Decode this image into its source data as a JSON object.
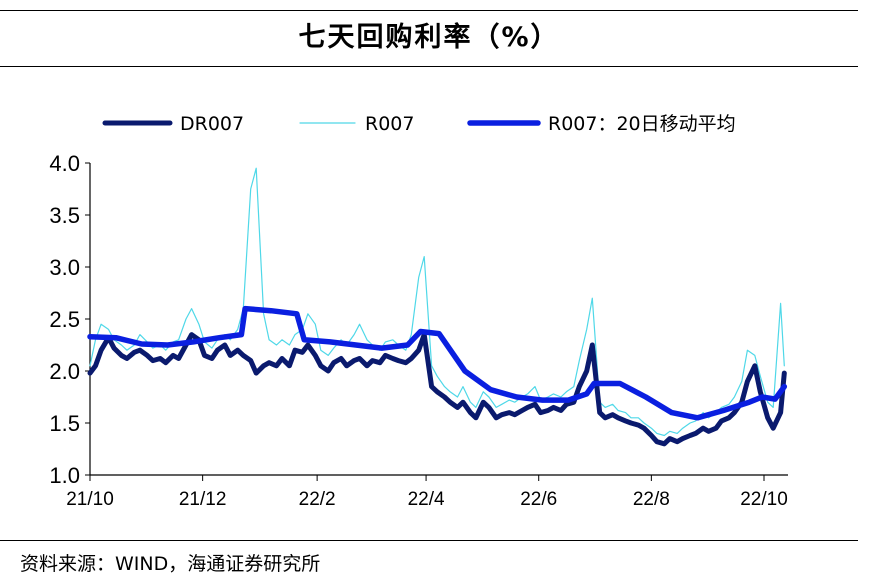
{
  "title": "七天回购利率（%）",
  "source": "资料来源：WIND，海通证券研究所",
  "colors": {
    "dr007": "#0a1a6e",
    "r007": "#4fd8e8",
    "ma20": "#0a1fe0"
  },
  "chart_data": {
    "type": "line",
    "x_ticks": [
      "21/10",
      "21/12",
      "22/2",
      "22/4",
      "22/6",
      "22/8",
      "22/10"
    ],
    "x_range": [
      "2021-10-01",
      "2022-10-14"
    ],
    "ylim": [
      1.0,
      4.0
    ],
    "y_ticks": [
      "4.0",
      "3.5",
      "3.0",
      "2.5",
      "2.0",
      "1.5",
      "1.0"
    ],
    "grid": false,
    "legend": "top",
    "series": [
      {
        "name": "DR007",
        "color": "#0a1a6e",
        "points": [
          [
            "2021-10-01",
            1.98
          ],
          [
            "2021-10-04",
            2.05
          ],
          [
            "2021-10-07",
            2.2
          ],
          [
            "2021-10-11",
            2.32
          ],
          [
            "2021-10-14",
            2.22
          ],
          [
            "2021-10-18",
            2.15
          ],
          [
            "2021-10-21",
            2.12
          ],
          [
            "2021-10-25",
            2.18
          ],
          [
            "2021-10-28",
            2.2
          ],
          [
            "2021-11-01",
            2.15
          ],
          [
            "2021-11-04",
            2.1
          ],
          [
            "2021-11-08",
            2.12
          ],
          [
            "2021-11-11",
            2.08
          ],
          [
            "2021-11-15",
            2.15
          ],
          [
            "2021-11-18",
            2.12
          ],
          [
            "2021-11-22",
            2.25
          ],
          [
            "2021-11-25",
            2.35
          ],
          [
            "2021-11-29",
            2.3
          ],
          [
            "2021-12-02",
            2.15
          ],
          [
            "2021-12-06",
            2.12
          ],
          [
            "2021-12-09",
            2.2
          ],
          [
            "2021-12-13",
            2.25
          ],
          [
            "2021-12-16",
            2.15
          ],
          [
            "2021-12-20",
            2.2
          ],
          [
            "2021-12-23",
            2.15
          ],
          [
            "2021-12-27",
            2.1
          ],
          [
            "2021-12-30",
            1.98
          ],
          [
            "2022-01-03",
            2.05
          ],
          [
            "2022-01-06",
            2.08
          ],
          [
            "2022-01-10",
            2.05
          ],
          [
            "2022-01-13",
            2.12
          ],
          [
            "2022-01-17",
            2.05
          ],
          [
            "2022-01-20",
            2.2
          ],
          [
            "2022-01-24",
            2.18
          ],
          [
            "2022-01-27",
            2.25
          ],
          [
            "2022-01-31",
            2.15
          ],
          [
            "2022-02-03",
            2.05
          ],
          [
            "2022-02-07",
            2.0
          ],
          [
            "2022-02-10",
            2.08
          ],
          [
            "2022-02-14",
            2.12
          ],
          [
            "2022-02-17",
            2.05
          ],
          [
            "2022-02-21",
            2.1
          ],
          [
            "2022-02-24",
            2.12
          ],
          [
            "2022-02-28",
            2.05
          ],
          [
            "2022-03-03",
            2.1
          ],
          [
            "2022-03-07",
            2.08
          ],
          [
            "2022-03-10",
            2.15
          ],
          [
            "2022-03-14",
            2.12
          ],
          [
            "2022-03-17",
            2.1
          ],
          [
            "2022-03-21",
            2.08
          ],
          [
            "2022-03-24",
            2.12
          ],
          [
            "2022-03-28",
            2.2
          ],
          [
            "2022-03-31",
            2.35
          ],
          [
            "2022-04-04",
            1.85
          ],
          [
            "2022-04-07",
            1.8
          ],
          [
            "2022-04-11",
            1.75
          ],
          [
            "2022-04-14",
            1.7
          ],
          [
            "2022-04-18",
            1.65
          ],
          [
            "2022-04-21",
            1.7
          ],
          [
            "2022-04-25",
            1.6
          ],
          [
            "2022-04-28",
            1.55
          ],
          [
            "2022-05-02",
            1.7
          ],
          [
            "2022-05-05",
            1.65
          ],
          [
            "2022-05-09",
            1.55
          ],
          [
            "2022-05-12",
            1.58
          ],
          [
            "2022-05-16",
            1.6
          ],
          [
            "2022-05-19",
            1.58
          ],
          [
            "2022-05-23",
            1.62
          ],
          [
            "2022-05-26",
            1.65
          ],
          [
            "2022-05-30",
            1.68
          ],
          [
            "2022-06-02",
            1.6
          ],
          [
            "2022-06-06",
            1.62
          ],
          [
            "2022-06-09",
            1.65
          ],
          [
            "2022-06-13",
            1.62
          ],
          [
            "2022-06-16",
            1.68
          ],
          [
            "2022-06-20",
            1.7
          ],
          [
            "2022-06-23",
            1.85
          ],
          [
            "2022-06-27",
            2.0
          ],
          [
            "2022-06-30",
            2.25
          ],
          [
            "2022-07-04",
            1.6
          ],
          [
            "2022-07-07",
            1.55
          ],
          [
            "2022-07-11",
            1.58
          ],
          [
            "2022-07-14",
            1.55
          ],
          [
            "2022-07-18",
            1.52
          ],
          [
            "2022-07-21",
            1.5
          ],
          [
            "2022-07-25",
            1.48
          ],
          [
            "2022-07-28",
            1.45
          ],
          [
            "2022-08-01",
            1.38
          ],
          [
            "2022-08-04",
            1.32
          ],
          [
            "2022-08-08",
            1.3
          ],
          [
            "2022-08-11",
            1.35
          ],
          [
            "2022-08-15",
            1.32
          ],
          [
            "2022-08-18",
            1.35
          ],
          [
            "2022-08-22",
            1.38
          ],
          [
            "2022-08-25",
            1.4
          ],
          [
            "2022-08-29",
            1.45
          ],
          [
            "2022-09-01",
            1.42
          ],
          [
            "2022-09-05",
            1.45
          ],
          [
            "2022-09-08",
            1.52
          ],
          [
            "2022-09-12",
            1.55
          ],
          [
            "2022-09-15",
            1.6
          ],
          [
            "2022-09-19",
            1.7
          ],
          [
            "2022-09-22",
            1.9
          ],
          [
            "2022-09-26",
            2.05
          ],
          [
            "2022-09-29",
            1.8
          ],
          [
            "2022-10-03",
            1.55
          ],
          [
            "2022-10-06",
            1.45
          ],
          [
            "2022-10-10",
            1.6
          ],
          [
            "2022-10-12",
            1.98
          ]
        ]
      },
      {
        "name": "R007",
        "color": "#4fd8e8",
        "points": [
          [
            "2021-10-01",
            2.05
          ],
          [
            "2021-10-04",
            2.3
          ],
          [
            "2021-10-07",
            2.45
          ],
          [
            "2021-10-11",
            2.4
          ],
          [
            "2021-10-14",
            2.3
          ],
          [
            "2021-10-18",
            2.25
          ],
          [
            "2021-10-21",
            2.2
          ],
          [
            "2021-10-25",
            2.25
          ],
          [
            "2021-10-28",
            2.35
          ],
          [
            "2021-11-01",
            2.28
          ],
          [
            "2021-11-04",
            2.22
          ],
          [
            "2021-11-08",
            2.25
          ],
          [
            "2021-11-11",
            2.2
          ],
          [
            "2021-11-15",
            2.28
          ],
          [
            "2021-11-18",
            2.3
          ],
          [
            "2021-11-22",
            2.5
          ],
          [
            "2021-11-25",
            2.6
          ],
          [
            "2021-11-29",
            2.45
          ],
          [
            "2021-12-02",
            2.28
          ],
          [
            "2021-12-06",
            2.22
          ],
          [
            "2021-12-09",
            2.3
          ],
          [
            "2021-12-13",
            2.35
          ],
          [
            "2021-12-16",
            2.3
          ],
          [
            "2021-12-20",
            2.4
          ],
          [
            "2021-12-23",
            2.6
          ],
          [
            "2021-12-27",
            3.75
          ],
          [
            "2021-12-30",
            3.95
          ],
          [
            "2022-01-03",
            2.55
          ],
          [
            "2022-01-06",
            2.3
          ],
          [
            "2022-01-10",
            2.25
          ],
          [
            "2022-01-13",
            2.3
          ],
          [
            "2022-01-17",
            2.25
          ],
          [
            "2022-01-20",
            2.35
          ],
          [
            "2022-01-24",
            2.4
          ],
          [
            "2022-01-27",
            2.55
          ],
          [
            "2022-01-31",
            2.45
          ],
          [
            "2022-02-03",
            2.2
          ],
          [
            "2022-02-07",
            2.15
          ],
          [
            "2022-02-10",
            2.22
          ],
          [
            "2022-02-14",
            2.3
          ],
          [
            "2022-02-17",
            2.25
          ],
          [
            "2022-02-21",
            2.35
          ],
          [
            "2022-02-24",
            2.45
          ],
          [
            "2022-02-28",
            2.3
          ],
          [
            "2022-03-03",
            2.25
          ],
          [
            "2022-03-07",
            2.2
          ],
          [
            "2022-03-10",
            2.28
          ],
          [
            "2022-03-14",
            2.3
          ],
          [
            "2022-03-17",
            2.25
          ],
          [
            "2022-03-21",
            2.2
          ],
          [
            "2022-03-24",
            2.35
          ],
          [
            "2022-03-28",
            2.9
          ],
          [
            "2022-03-31",
            3.1
          ],
          [
            "2022-04-04",
            2.05
          ],
          [
            "2022-04-07",
            1.95
          ],
          [
            "2022-04-11",
            1.85
          ],
          [
            "2022-04-14",
            1.8
          ],
          [
            "2022-04-18",
            1.75
          ],
          [
            "2022-04-21",
            1.85
          ],
          [
            "2022-04-25",
            1.7
          ],
          [
            "2022-04-28",
            1.65
          ],
          [
            "2022-05-02",
            1.8
          ],
          [
            "2022-05-05",
            1.75
          ],
          [
            "2022-05-09",
            1.65
          ],
          [
            "2022-05-12",
            1.68
          ],
          [
            "2022-05-16",
            1.72
          ],
          [
            "2022-05-19",
            1.7
          ],
          [
            "2022-05-23",
            1.75
          ],
          [
            "2022-05-26",
            1.78
          ],
          [
            "2022-05-30",
            1.85
          ],
          [
            "2022-06-02",
            1.72
          ],
          [
            "2022-06-06",
            1.75
          ],
          [
            "2022-06-09",
            1.78
          ],
          [
            "2022-06-13",
            1.75
          ],
          [
            "2022-06-16",
            1.8
          ],
          [
            "2022-06-20",
            1.85
          ],
          [
            "2022-06-23",
            2.1
          ],
          [
            "2022-06-27",
            2.4
          ],
          [
            "2022-06-30",
            2.7
          ],
          [
            "2022-07-04",
            1.7
          ],
          [
            "2022-07-07",
            1.65
          ],
          [
            "2022-07-11",
            1.68
          ],
          [
            "2022-07-14",
            1.62
          ],
          [
            "2022-07-18",
            1.6
          ],
          [
            "2022-07-21",
            1.55
          ],
          [
            "2022-07-25",
            1.55
          ],
          [
            "2022-07-28",
            1.5
          ],
          [
            "2022-08-01",
            1.45
          ],
          [
            "2022-08-04",
            1.4
          ],
          [
            "2022-08-08",
            1.38
          ],
          [
            "2022-08-11",
            1.42
          ],
          [
            "2022-08-15",
            1.4
          ],
          [
            "2022-08-18",
            1.45
          ],
          [
            "2022-08-22",
            1.5
          ],
          [
            "2022-08-25",
            1.52
          ],
          [
            "2022-08-29",
            1.6
          ],
          [
            "2022-09-01",
            1.55
          ],
          [
            "2022-09-05",
            1.6
          ],
          [
            "2022-09-08",
            1.65
          ],
          [
            "2022-09-12",
            1.68
          ],
          [
            "2022-09-15",
            1.75
          ],
          [
            "2022-09-19",
            1.9
          ],
          [
            "2022-09-22",
            2.2
          ],
          [
            "2022-09-26",
            2.15
          ],
          [
            "2022-09-29",
            1.95
          ],
          [
            "2022-10-03",
            1.7
          ],
          [
            "2022-10-06",
            1.65
          ],
          [
            "2022-10-10",
            2.65
          ],
          [
            "2022-10-12",
            2.05
          ]
        ]
      },
      {
        "name": "R007：20日移动平均",
        "color": "#0a1fe0",
        "points": [
          [
            "2021-10-01",
            2.33
          ],
          [
            "2021-10-15",
            2.32
          ],
          [
            "2021-10-29",
            2.26
          ],
          [
            "2021-11-12",
            2.25
          ],
          [
            "2021-11-26",
            2.28
          ],
          [
            "2021-12-10",
            2.32
          ],
          [
            "2021-12-22",
            2.35
          ],
          [
            "2021-12-24",
            2.6
          ],
          [
            "2022-01-07",
            2.58
          ],
          [
            "2022-01-21",
            2.55
          ],
          [
            "2022-01-25",
            2.3
          ],
          [
            "2022-02-08",
            2.28
          ],
          [
            "2022-02-22",
            2.25
          ],
          [
            "2022-03-08",
            2.22
          ],
          [
            "2022-03-22",
            2.25
          ],
          [
            "2022-03-29",
            2.38
          ],
          [
            "2022-04-08",
            2.36
          ],
          [
            "2022-04-22",
            2.0
          ],
          [
            "2022-05-06",
            1.82
          ],
          [
            "2022-05-20",
            1.75
          ],
          [
            "2022-06-03",
            1.72
          ],
          [
            "2022-06-17",
            1.72
          ],
          [
            "2022-06-27",
            1.78
          ],
          [
            "2022-07-01",
            1.88
          ],
          [
            "2022-07-15",
            1.88
          ],
          [
            "2022-07-29",
            1.75
          ],
          [
            "2022-08-12",
            1.6
          ],
          [
            "2022-08-26",
            1.55
          ],
          [
            "2022-09-09",
            1.62
          ],
          [
            "2022-09-23",
            1.7
          ],
          [
            "2022-09-30",
            1.75
          ],
          [
            "2022-10-07",
            1.73
          ],
          [
            "2022-10-12",
            1.85
          ]
        ]
      }
    ]
  }
}
